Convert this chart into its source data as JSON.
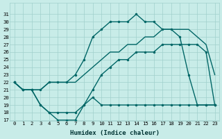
{
  "xlabel": "Humidex (Indice chaleur)",
  "bg_color": "#c8ece8",
  "line_color": "#006666",
  "grid_color": "#a0d0cc",
  "xlim": [
    -0.5,
    23.5
  ],
  "ylim": [
    17,
    32
  ],
  "yticks": [
    17,
    18,
    19,
    20,
    21,
    22,
    23,
    24,
    25,
    26,
    27,
    28,
    29,
    30,
    31
  ],
  "xticks": [
    0,
    1,
    2,
    3,
    4,
    5,
    6,
    7,
    8,
    9,
    10,
    11,
    12,
    13,
    14,
    15,
    16,
    17,
    18,
    19,
    20,
    21,
    22,
    23
  ],
  "line1_x": [
    0,
    1,
    2,
    3,
    4,
    5,
    6,
    7,
    8,
    9,
    10,
    11,
    12,
    13,
    14,
    15,
    16,
    17,
    18,
    19,
    20,
    21,
    22,
    23
  ],
  "line1_y": [
    22,
    21,
    21,
    19,
    18,
    17,
    17,
    17,
    19,
    21,
    23,
    24,
    25,
    25,
    26,
    26,
    26,
    27,
    27,
    27,
    27,
    27,
    26,
    19
  ],
  "line2_x": [
    0,
    1,
    2,
    3,
    4,
    5,
    6,
    7,
    8,
    9,
    10,
    11,
    12,
    13,
    14,
    15,
    16,
    17,
    18,
    19,
    20,
    21,
    22,
    23
  ],
  "line2_y": [
    22,
    21,
    21,
    19,
    18,
    18,
    18,
    18,
    19,
    20,
    19,
    19,
    19,
    19,
    19,
    19,
    19,
    19,
    19,
    19,
    19,
    19,
    19,
    19
  ],
  "line3_x": [
    0,
    1,
    2,
    3,
    4,
    5,
    6,
    7,
    8,
    9,
    10,
    11,
    12,
    13,
    14,
    15,
    16,
    17,
    18,
    19,
    20,
    21,
    22,
    23
  ],
  "line3_y": [
    22,
    21,
    21,
    21,
    22,
    22,
    22,
    22,
    23,
    24,
    25,
    26,
    26,
    27,
    27,
    28,
    28,
    29,
    29,
    29,
    29,
    28,
    27,
    23
  ],
  "line4_x": [
    0,
    1,
    2,
    3,
    4,
    5,
    6,
    7,
    8,
    9,
    10,
    11,
    12,
    13,
    14,
    15,
    16,
    17,
    18,
    19,
    20,
    21,
    22,
    23
  ],
  "line4_y": [
    22,
    21,
    21,
    21,
    22,
    22,
    22,
    23,
    25,
    28,
    29,
    30,
    30,
    30,
    31,
    30,
    30,
    29,
    29,
    28,
    23,
    19,
    19,
    19
  ],
  "line1_markers": true,
  "line2_markers": true,
  "line3_markers": false,
  "line4_markers": true
}
